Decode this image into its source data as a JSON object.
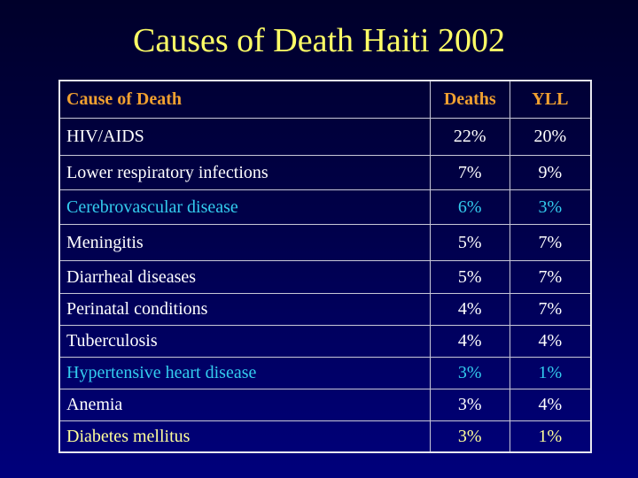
{
  "title": "Causes of Death Haiti 2002",
  "table": {
    "headers": [
      "Cause of Death",
      "Deaths",
      "YLL"
    ],
    "rows": [
      {
        "cause": "HIV/AIDS",
        "deaths": "22%",
        "yll": "20%",
        "color": "#ffffff"
      },
      {
        "cause": "Lower respiratory infections",
        "deaths": "7%",
        "yll": "9%",
        "color": "#ffffff"
      },
      {
        "cause": "Cerebrovascular disease",
        "deaths": "6%",
        "yll": "3%",
        "color": "#33ccee"
      },
      {
        "cause": "Meningitis",
        "deaths": "5%",
        "yll": "7%",
        "color": "#ffffff"
      },
      {
        "cause": "Diarrheal diseases",
        "deaths": "5%",
        "yll": "7%",
        "color": "#ffffff"
      },
      {
        "cause": "Perinatal conditions",
        "deaths": "4%",
        "yll": "7%",
        "color": "#ffffff"
      },
      {
        "cause": "Tuberculosis",
        "deaths": "4%",
        "yll": "4%",
        "color": "#ffffff"
      },
      {
        "cause": "Hypertensive heart disease",
        "deaths": "3%",
        "yll": "1%",
        "color": "#33ccee"
      },
      {
        "cause": "Anemia",
        "deaths": "3%",
        "yll": "4%",
        "color": "#ffffff"
      },
      {
        "cause": "Diabetes mellitus",
        "deaths": "3%",
        "yll": "1%",
        "color": "#ffff99"
      }
    ]
  }
}
